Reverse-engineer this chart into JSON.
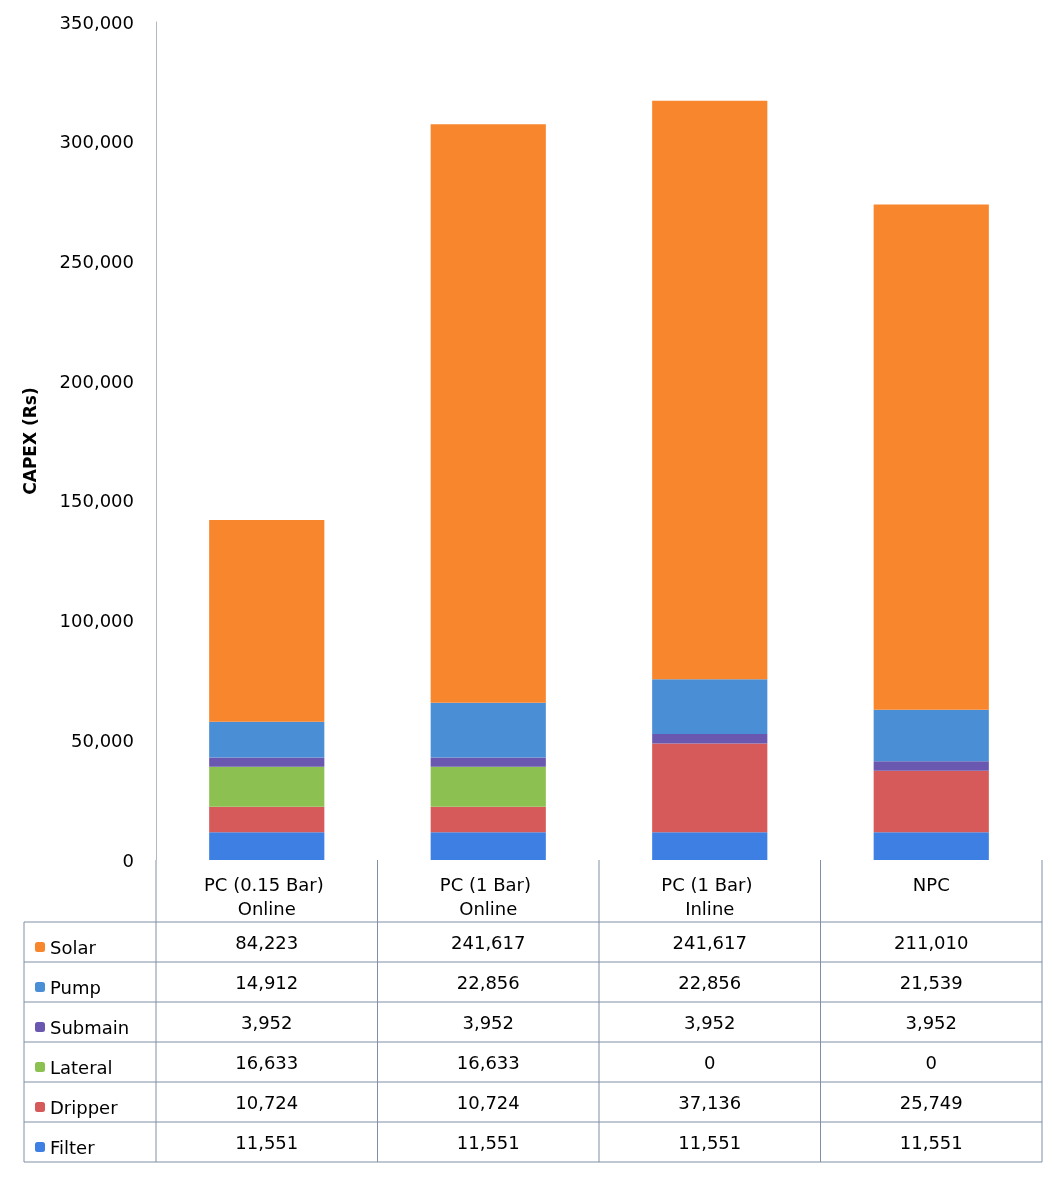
{
  "chart_data": {
    "type": "bar",
    "stacked": true,
    "ylabel": "CAPEX (Rs)",
    "categories": [
      "PC (0.15 Bar) Online",
      "PC (1 Bar) Online",
      "PC (1 Bar) Inline",
      "NPC"
    ],
    "series": [
      {
        "name": "Filter",
        "color": "#3d7fe3",
        "values": [
          11551,
          11551,
          11551,
          11551
        ],
        "value_labels": [
          "11,551",
          "11,551",
          "11,551",
          "11,551"
        ]
      },
      {
        "name": "Dripper",
        "color": "#d65a5a",
        "values": [
          10724,
          10724,
          37136,
          25749
        ],
        "value_labels": [
          "10,724",
          "10,724",
          "37,136",
          "25,749"
        ]
      },
      {
        "name": "Lateral",
        "color": "#8cc152",
        "values": [
          16633,
          16633,
          0,
          0
        ],
        "value_labels": [
          "16,633",
          "16,633",
          "0",
          "0"
        ]
      },
      {
        "name": "Submain",
        "color": "#6a58b0",
        "values": [
          3952,
          3952,
          3952,
          3952
        ],
        "value_labels": [
          "3,952",
          "3,952",
          "3,952",
          "3,952"
        ]
      },
      {
        "name": "Pump",
        "color": "#4a8fd6",
        "values": [
          14912,
          22856,
          22856,
          21539
        ],
        "value_labels": [
          "14,912",
          "22,856",
          "22,856",
          "21,539"
        ]
      },
      {
        "name": "Solar",
        "color": "#f7862c",
        "values": [
          84223,
          241617,
          241617,
          211010
        ],
        "value_labels": [
          "84,223",
          "241,617",
          "241,617",
          "211,010"
        ]
      }
    ],
    "ylim": [
      0,
      350000
    ],
    "yticks": [
      0,
      {
        "value": 50000,
        "label": "50,000"
      },
      {
        "value": 100000,
        "label": "100,000"
      },
      {
        "value": 150000,
        "label": "150,000"
      },
      {
        "value": 200000,
        "label": "200,000"
      },
      {
        "value": 250000,
        "label": "250,000"
      },
      {
        "value": 300000,
        "label": "300,000"
      },
      {
        "value": 350000,
        "label": "350,000"
      }
    ],
    "grid": false,
    "legend": "bottom"
  }
}
